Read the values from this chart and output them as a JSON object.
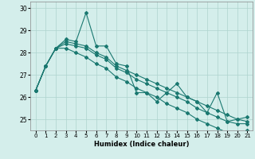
{
  "xlabel": "Humidex (Indice chaleur)",
  "xlim": [
    -0.5,
    21.5
  ],
  "ylim": [
    24.5,
    30.3
  ],
  "yticks": [
    25,
    26,
    27,
    28,
    29,
    30
  ],
  "xticks": [
    0,
    1,
    2,
    3,
    4,
    5,
    6,
    7,
    8,
    9,
    10,
    11,
    12,
    13,
    14,
    15,
    16,
    17,
    18,
    19,
    20,
    21
  ],
  "background_color": "#d4eeeb",
  "grid_color": "#aed4ce",
  "line_color": "#1a7870",
  "series": [
    [
      26.3,
      27.4,
      28.2,
      28.6,
      28.5,
      29.8,
      28.3,
      28.3,
      27.5,
      27.4,
      26.2,
      26.2,
      25.8,
      26.2,
      26.6,
      26.0,
      25.8,
      25.3,
      26.2,
      24.9,
      25.0,
      25.1
    ],
    [
      26.3,
      27.4,
      28.2,
      28.5,
      28.4,
      28.3,
      28.0,
      27.8,
      27.4,
      27.2,
      27.0,
      26.8,
      26.6,
      26.4,
      26.2,
      26.0,
      25.8,
      25.6,
      25.4,
      25.2,
      25.0,
      24.9
    ],
    [
      26.3,
      27.4,
      28.2,
      28.4,
      28.3,
      28.2,
      27.9,
      27.7,
      27.3,
      27.1,
      26.8,
      26.6,
      26.4,
      26.2,
      26.0,
      25.8,
      25.5,
      25.3,
      25.1,
      24.9,
      24.8,
      24.8
    ],
    [
      26.3,
      27.4,
      28.2,
      28.2,
      28.0,
      27.8,
      27.5,
      27.3,
      26.9,
      26.7,
      26.4,
      26.2,
      26.0,
      25.7,
      25.5,
      25.3,
      25.0,
      24.8,
      24.6,
      24.4,
      24.4,
      24.5
    ]
  ],
  "marker": "D",
  "marker_size": 2,
  "line_width": 0.8
}
